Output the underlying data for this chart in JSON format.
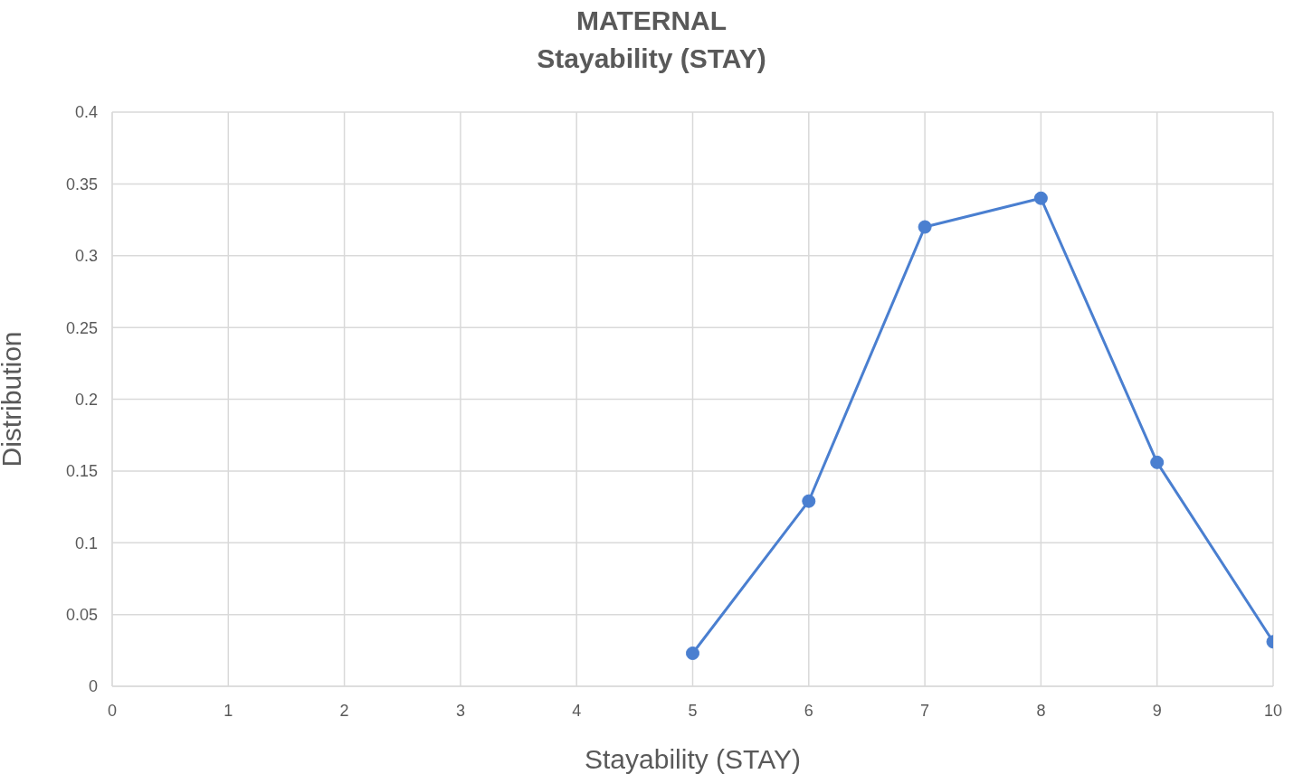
{
  "chart_data": {
    "type": "line",
    "title": "MATERNAL",
    "subtitle": "Stayability (STAY)",
    "xlabel": "Stayability (STAY)",
    "ylabel": "Distribution",
    "x": [
      5,
      6,
      7,
      8,
      9,
      10
    ],
    "series": [
      {
        "color": "#4a7fd0",
        "values": [
          0.023,
          0.129,
          0.32,
          0.34,
          0.156,
          0.031
        ]
      }
    ],
    "xlim": [
      0,
      10
    ],
    "xticks": [
      0,
      1,
      2,
      3,
      4,
      5,
      6,
      7,
      8,
      9,
      10
    ],
    "ylim": [
      0,
      0.4
    ],
    "yticks": [
      0,
      0.05,
      0.1,
      0.15,
      0.2,
      0.25,
      0.3,
      0.35,
      0.4
    ],
    "grid": true,
    "marker": "circle",
    "line_style": "solid",
    "legend": false
  }
}
